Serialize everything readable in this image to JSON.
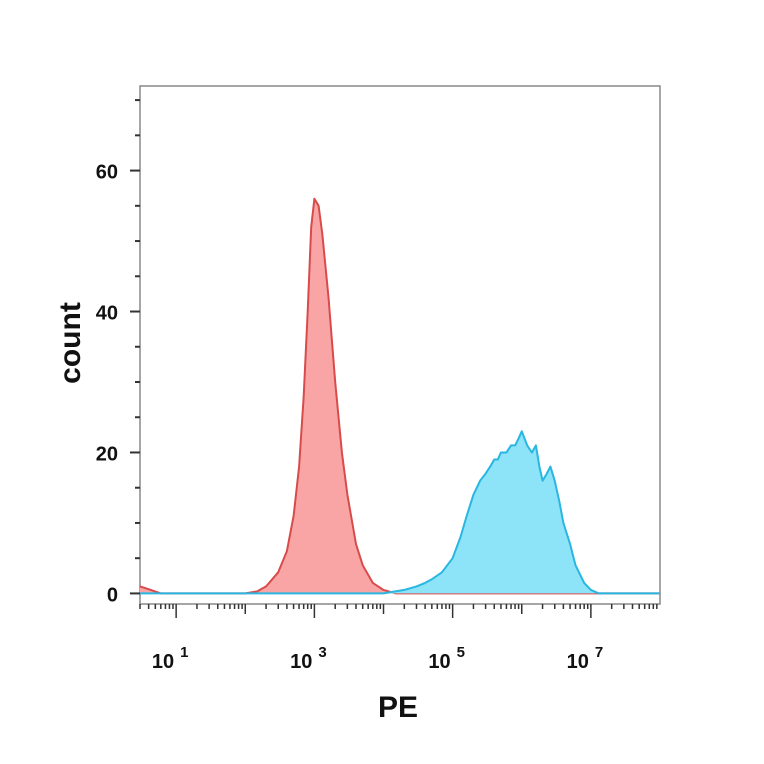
{
  "chart_data": {
    "type": "area",
    "title": "",
    "xlabel": "PE",
    "ylabel": "count",
    "x_scale": "log",
    "xlim": [
      3,
      100000000.0
    ],
    "ylim": [
      -1.5,
      72
    ],
    "grid": false,
    "x_ticks": [
      {
        "base": "10",
        "exp": "1",
        "value": 10
      },
      {
        "base": "10",
        "exp": "3",
        "value": 1000
      },
      {
        "base": "10",
        "exp": "5",
        "value": 100000
      },
      {
        "base": "10",
        "exp": "7",
        "value": 10000000
      }
    ],
    "y_ticks": [
      {
        "label": "0",
        "value": 0
      },
      {
        "label": "20",
        "value": 20
      },
      {
        "label": "40",
        "value": 40
      },
      {
        "label": "60",
        "value": 60
      }
    ],
    "series": [
      {
        "color_fill": "#f9a5a5",
        "color_line": "#d84b4b",
        "x": [
          3,
          4,
          6,
          12,
          50,
          100,
          150,
          200,
          300,
          400,
          500,
          600,
          700,
          800,
          900,
          1000,
          1150,
          1300,
          1600,
          2000,
          2500,
          3000,
          4000,
          5000,
          7000,
          10000,
          15000,
          30000,
          100000,
          1000000,
          10000000,
          100000000
        ],
        "y": [
          1,
          0.6,
          0,
          0,
          0,
          0,
          0.3,
          1,
          3,
          6,
          11,
          18,
          28,
          40,
          52,
          56,
          55,
          51,
          42,
          30,
          20,
          14,
          7,
          4,
          1.5,
          0.5,
          0,
          0,
          0,
          0,
          0,
          0
        ]
      },
      {
        "color_fill": "#8de3f7",
        "color_line": "#29b6e0",
        "x": [
          3,
          10000,
          20000,
          30000,
          40000,
          50000,
          70000,
          100000,
          130000,
          160000,
          200000,
          250000,
          300000,
          350000,
          400000,
          450000,
          500000,
          600000,
          700000,
          800000,
          900000,
          1000000,
          1200000,
          1400000,
          1600000,
          1800000,
          2000000,
          2300000,
          2600000,
          3000000,
          3500000,
          4000000,
          5000000,
          6000000,
          8000000,
          10000000,
          13000000,
          100000000
        ],
        "y": [
          0,
          0,
          0.5,
          1,
          1.5,
          2,
          3,
          5,
          8,
          11,
          14,
          16,
          17,
          18,
          19,
          19,
          20,
          20,
          21,
          21,
          22,
          23,
          21,
          20,
          21,
          18,
          16,
          17,
          18,
          16,
          13,
          10,
          7,
          4,
          1.5,
          0.5,
          0,
          0
        ]
      }
    ]
  }
}
